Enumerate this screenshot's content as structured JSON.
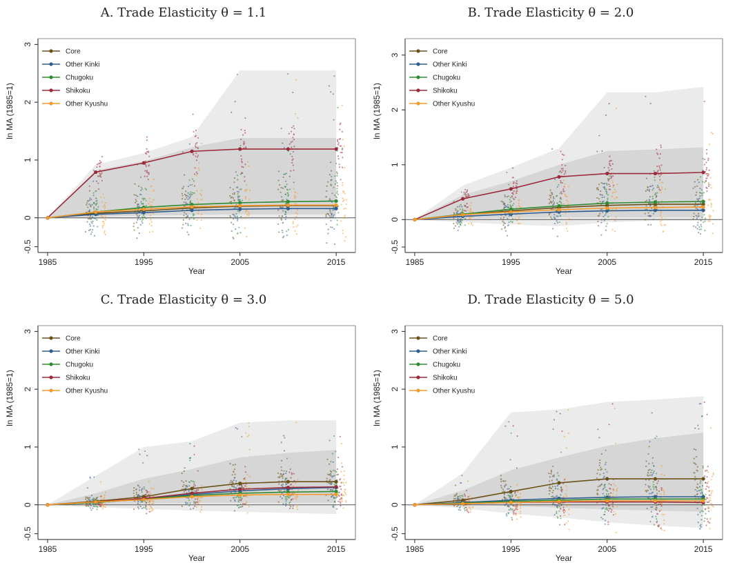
{
  "colors": {
    "Core": "#6b5118",
    "Other Kinki": "#2f5d8f",
    "Chugoku": "#2f8a32",
    "Shikoku": "#9b2a3c",
    "Other Kyushu": "#f29a2e",
    "band_outer": "#ebebeb",
    "band_inner": "#d6d6d6"
  },
  "chart_data": [
    {
      "type": "line",
      "title": "A. Trade Elasticity θ = 1.1",
      "xlabel": "Year",
      "ylabel": "ln MA (1985=1)",
      "xlim": [
        1984,
        2017
      ],
      "ylim": [
        -0.6,
        3.1
      ],
      "xticks": [
        1985,
        1995,
        2005,
        2015
      ],
      "yticks": [
        -0.5,
        0,
        1,
        2,
        3
      ],
      "x": [
        1985,
        1990,
        1995,
        2000,
        2005,
        2010,
        2015
      ],
      "legend_position": "top-left",
      "series": [
        {
          "name": "Core",
          "values": [
            0,
            0.08,
            0.12,
            0.17,
            0.2,
            0.21,
            0.21
          ]
        },
        {
          "name": "Other Kinki",
          "values": [
            0,
            0.06,
            0.09,
            0.13,
            0.15,
            0.16,
            0.16
          ]
        },
        {
          "name": "Chugoku",
          "values": [
            0,
            0.1,
            0.18,
            0.23,
            0.26,
            0.28,
            0.29
          ]
        },
        {
          "name": "Shikoku",
          "values": [
            0,
            0.79,
            0.95,
            1.15,
            1.19,
            1.19,
            1.19
          ]
        },
        {
          "name": "Other Kyushu",
          "values": [
            0,
            0.1,
            0.15,
            0.19,
            0.21,
            0.22,
            0.22
          ]
        }
      ],
      "band_outer": {
        "upper": [
          0,
          0.92,
          1.12,
          1.4,
          2.55,
          2.55,
          2.55
        ],
        "lower": [
          0,
          -0.02,
          -0.03,
          -0.03,
          -0.03,
          -0.03,
          -0.03
        ]
      },
      "band_inner": {
        "upper": [
          0,
          0.82,
          0.98,
          1.22,
          1.38,
          1.38,
          1.38
        ],
        "lower": [
          0,
          0.02,
          0.04,
          0.05,
          0.06,
          0.06,
          0.06
        ]
      }
    },
    {
      "type": "line",
      "title": "B. Trade Elasticity θ = 2.0",
      "xlabel": "Year",
      "ylabel": "ln MA (1985=1)",
      "xlim": [
        1984,
        2017
      ],
      "ylim": [
        -0.6,
        3.3
      ],
      "xticks": [
        1985,
        1995,
        2005,
        2015
      ],
      "yticks": [
        -0.5,
        0,
        1,
        2,
        3
      ],
      "x": [
        1985,
        1990,
        1995,
        2000,
        2005,
        2010,
        2015
      ],
      "legend_position": "top-left",
      "series": [
        {
          "name": "Core",
          "values": [
            0,
            0.09,
            0.16,
            0.22,
            0.26,
            0.28,
            0.28
          ]
        },
        {
          "name": "Other Kinki",
          "values": [
            0,
            0.06,
            0.1,
            0.14,
            0.16,
            0.17,
            0.17
          ]
        },
        {
          "name": "Chugoku",
          "values": [
            0,
            0.1,
            0.19,
            0.25,
            0.3,
            0.32,
            0.33
          ]
        },
        {
          "name": "Shikoku",
          "values": [
            0,
            0.38,
            0.56,
            0.78,
            0.84,
            0.84,
            0.86
          ]
        },
        {
          "name": "Other Kyushu",
          "values": [
            0,
            0.09,
            0.14,
            0.18,
            0.21,
            0.22,
            0.23
          ]
        }
      ],
      "band_outer": {
        "upper": [
          0,
          0.62,
          0.95,
          1.3,
          2.32,
          2.32,
          2.42
        ],
        "lower": [
          0,
          -0.05,
          -0.09,
          -0.12,
          -0.05,
          -0.02,
          -0.02
        ]
      },
      "band_inner": {
        "upper": [
          0,
          0.45,
          0.7,
          1.0,
          1.25,
          1.28,
          1.32
        ],
        "lower": [
          0,
          0.02,
          0.03,
          0.04,
          0.04,
          0.04,
          0.04
        ]
      }
    },
    {
      "type": "line",
      "title": "C. Trade Elasticity θ = 3.0",
      "xlabel": "Year",
      "ylabel": "ln MA (1985=1)",
      "xlim": [
        1984,
        2017
      ],
      "ylim": [
        -0.6,
        3.1
      ],
      "xticks": [
        1985,
        1995,
        2005,
        2015
      ],
      "yticks": [
        -0.5,
        0,
        1,
        2,
        3
      ],
      "x": [
        1985,
        1990,
        1995,
        2000,
        2005,
        2010,
        2015
      ],
      "legend_position": "top-left",
      "series": [
        {
          "name": "Core",
          "values": [
            0,
            0.06,
            0.14,
            0.28,
            0.37,
            0.4,
            0.4
          ]
        },
        {
          "name": "Other Kinki",
          "values": [
            0,
            0.04,
            0.1,
            0.18,
            0.24,
            0.28,
            0.3
          ]
        },
        {
          "name": "Chugoku",
          "values": [
            0,
            0.04,
            0.1,
            0.16,
            0.2,
            0.22,
            0.23
          ]
        },
        {
          "name": "Shikoku",
          "values": [
            0,
            0.05,
            0.11,
            0.2,
            0.27,
            0.3,
            0.31
          ]
        },
        {
          "name": "Other Kyushu",
          "values": [
            0,
            0.05,
            0.09,
            0.14,
            0.17,
            0.18,
            0.18
          ]
        }
      ],
      "band_outer": {
        "upper": [
          0,
          0.5,
          1.0,
          1.1,
          1.42,
          1.46,
          1.46
        ],
        "lower": [
          0,
          -0.04,
          -0.07,
          -0.1,
          -0.12,
          -0.14,
          -0.16
        ]
      },
      "band_inner": {
        "upper": [
          0,
          0.2,
          0.45,
          0.62,
          0.82,
          0.9,
          0.95
        ],
        "lower": [
          0,
          0.01,
          0.02,
          0.03,
          0.03,
          0.03,
          0.03
        ]
      }
    },
    {
      "type": "line",
      "title": "D. Trade Elasticity θ = 5.0",
      "xlabel": "Year",
      "ylabel": "ln MA (1985=1)",
      "xlim": [
        1984,
        2017
      ],
      "ylim": [
        -0.6,
        3.1
      ],
      "xticks": [
        1985,
        1995,
        2005,
        2015
      ],
      "yticks": [
        -0.5,
        0,
        1,
        2,
        3
      ],
      "x": [
        1985,
        1990,
        1995,
        2000,
        2005,
        2010,
        2015
      ],
      "legend_position": "top-left",
      "series": [
        {
          "name": "Core",
          "values": [
            0,
            0.08,
            0.23,
            0.38,
            0.45,
            0.45,
            0.45
          ]
        },
        {
          "name": "Other Kinki",
          "values": [
            0,
            0.04,
            0.08,
            0.11,
            0.13,
            0.14,
            0.14
          ]
        },
        {
          "name": "Chugoku",
          "values": [
            0,
            0.03,
            0.06,
            0.08,
            0.1,
            0.1,
            0.1
          ]
        },
        {
          "name": "Shikoku",
          "values": [
            0,
            0.02,
            0.04,
            0.05,
            0.05,
            0.05,
            0.04
          ]
        },
        {
          "name": "Other Kyushu",
          "values": [
            0,
            0.02,
            0.04,
            0.06,
            0.07,
            0.07,
            0.07
          ]
        }
      ],
      "band_outer": {
        "upper": [
          0,
          0.55,
          1.6,
          1.65,
          1.78,
          1.82,
          1.88
        ],
        "lower": [
          0,
          -0.06,
          -0.15,
          -0.22,
          -0.3,
          -0.36,
          -0.4
        ]
      },
      "band_inner": {
        "upper": [
          0,
          0.25,
          0.6,
          0.82,
          1.02,
          1.15,
          1.25
        ],
        "lower": [
          0,
          0.0,
          -0.02,
          -0.05,
          -0.08,
          -0.1,
          -0.12
        ]
      }
    }
  ]
}
